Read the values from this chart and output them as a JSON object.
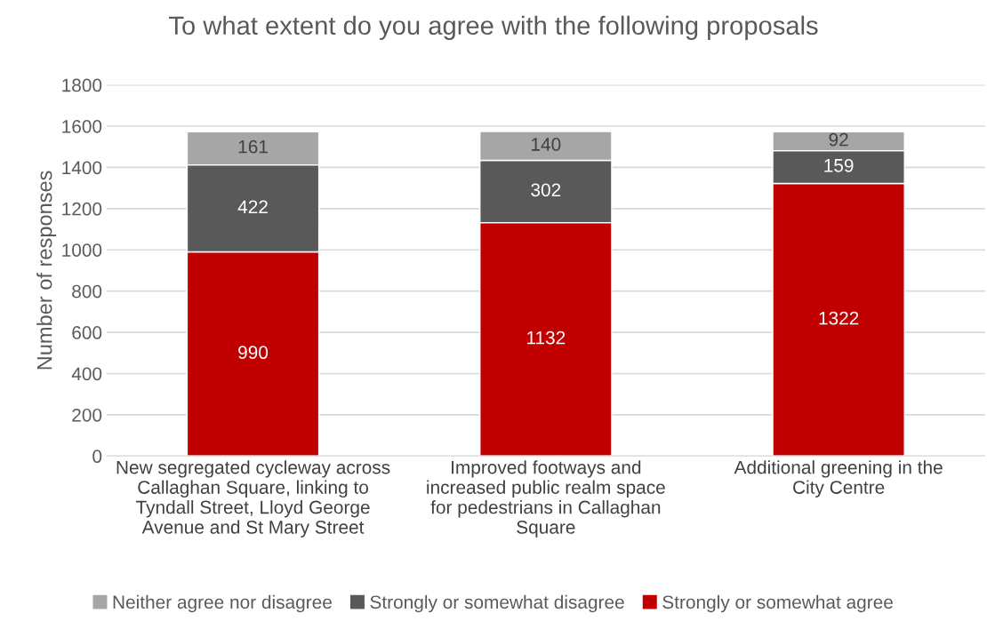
{
  "chart_data": {
    "type": "bar",
    "title": "To what extent do you agree with the following proposals",
    "ylabel": "Number of responses",
    "categories": [
      "New segregated cycleway across Callaghan Square, linking to Tyndall Street, Lloyd George Avenue and St Mary Street",
      "Improved footways and increased public realm space for pedestrians in Callaghan Square",
      "Additional greening in the City Centre"
    ],
    "stacked": true,
    "series": [
      {
        "name": "Strongly or somewhat agree",
        "color": "#c00000",
        "values": [
          990,
          1132,
          1322
        ]
      },
      {
        "name": "Strongly or somewhat disagree",
        "color": "#595959",
        "values": [
          422,
          302,
          159
        ]
      },
      {
        "name": "Neither agree nor disagree",
        "color": "#a6a6a6",
        "values": [
          161,
          140,
          92
        ]
      }
    ],
    "ylim": [
      0,
      1800
    ],
    "yticks": [
      0,
      200,
      400,
      600,
      800,
      1000,
      1200,
      1400,
      1600,
      1800
    ],
    "grid": "y",
    "legend": "bottom",
    "data_labels": true
  }
}
